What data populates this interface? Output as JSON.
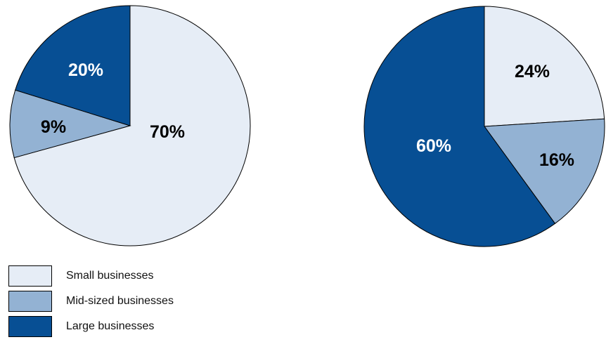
{
  "chart_data": [
    {
      "type": "pie",
      "categories": [
        "Small businesses",
        "Mid-sized businesses",
        "Large businesses"
      ],
      "values": [
        70,
        9,
        20
      ],
      "labels": [
        "70%",
        "9%",
        "20%"
      ],
      "colors": [
        "#e6edf6",
        "#93b2d3",
        "#074f94"
      ],
      "label_colors": [
        "#000000",
        "#000000",
        "#ffffff"
      ],
      "start_angle_deg": 0,
      "direction": "clockwise",
      "legend": "bottom-left"
    },
    {
      "type": "pie",
      "categories": [
        "Small businesses",
        "Mid-sized businesses",
        "Large businesses"
      ],
      "values": [
        24,
        16,
        60
      ],
      "labels": [
        "24%",
        "16%",
        "60%"
      ],
      "colors": [
        "#e6edf6",
        "#93b2d3",
        "#074f94"
      ],
      "label_colors": [
        "#000000",
        "#000000",
        "#ffffff"
      ],
      "start_angle_deg": 0,
      "direction": "clockwise",
      "legend": "bottom-left"
    }
  ],
  "legend": {
    "items": [
      {
        "label": "Small businesses",
        "color": "#e6edf6"
      },
      {
        "label": "Mid-sized businesses",
        "color": "#93b2d3"
      },
      {
        "label": "Large businesses",
        "color": "#074f94"
      }
    ]
  }
}
